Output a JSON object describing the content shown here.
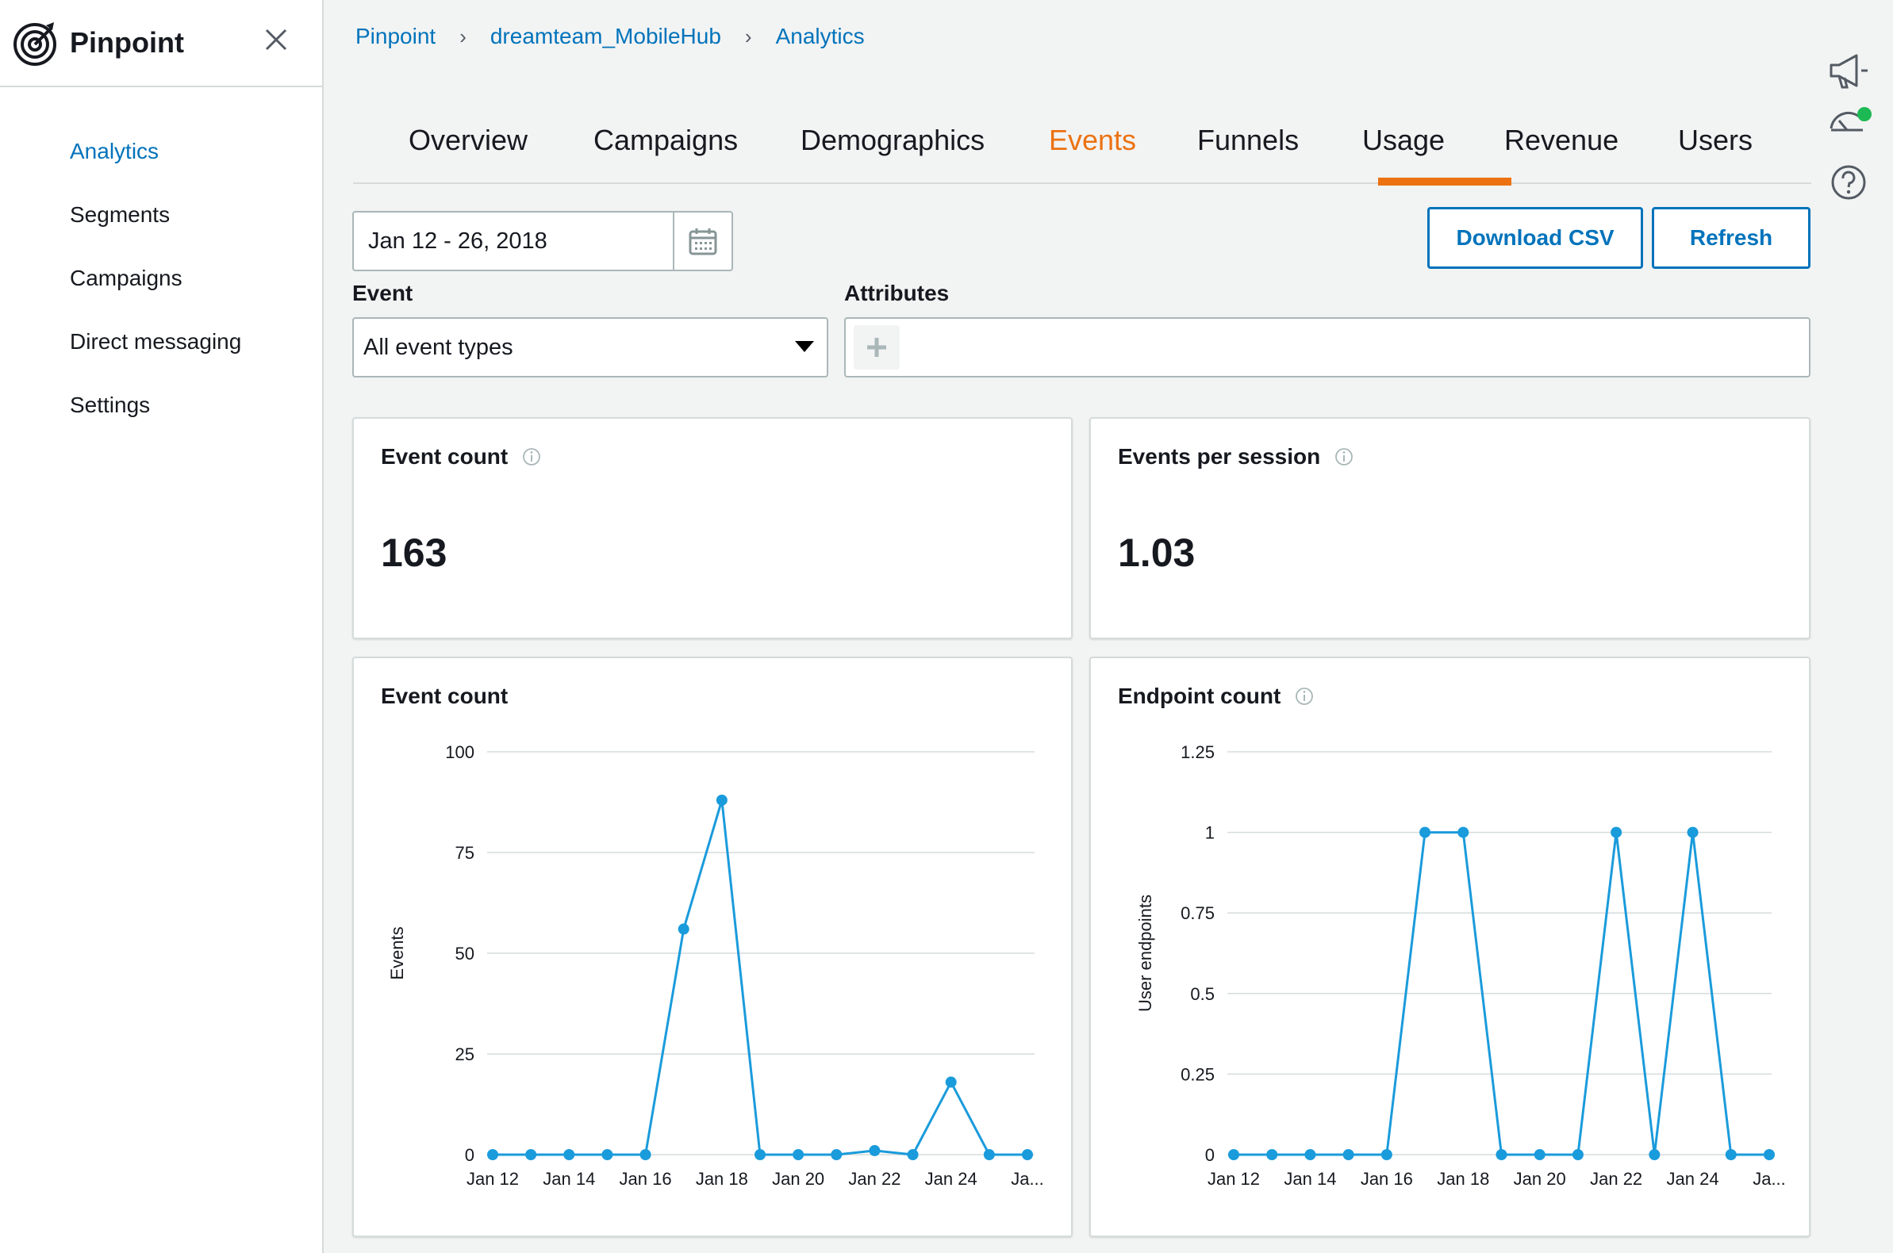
{
  "app": {
    "title": "Pinpoint"
  },
  "sidebar": {
    "items": [
      {
        "label": "Analytics",
        "active": true
      },
      {
        "label": "Segments"
      },
      {
        "label": "Campaigns"
      },
      {
        "label": "Direct messaging"
      },
      {
        "label": "Settings"
      }
    ]
  },
  "breadcrumb": [
    "Pinpoint",
    "dreamteam_MobileHub",
    "Analytics"
  ],
  "tabs": {
    "items": [
      "Overview",
      "Campaigns",
      "Demographics",
      "Events",
      "Funnels",
      "Usage",
      "Revenue",
      "Users"
    ],
    "active": "Events"
  },
  "date_range": {
    "value": "Jan 12 - 26, 2018"
  },
  "buttons": {
    "download_csv": "Download CSV",
    "refresh": "Refresh"
  },
  "filters": {
    "event_label": "Event",
    "event_value": "All event types",
    "attributes_label": "Attributes"
  },
  "metrics": {
    "event_count": {
      "title": "Event count",
      "value": "163"
    },
    "events_per_session": {
      "title": "Events per session",
      "value": "1.03"
    }
  },
  "colors": {
    "accent": "#ec7211",
    "link": "#0073bb",
    "series": "#1a9bdb",
    "status_dot": "#1db954"
  },
  "icons": [
    "target-logo-icon",
    "close-icon",
    "calendar-icon",
    "caret-down-icon",
    "plus-icon",
    "info-icon",
    "megaphone-icon",
    "gauge-status-icon",
    "help-icon"
  ],
  "chart_data": [
    {
      "type": "line",
      "title": "Event count",
      "xlabel": "",
      "ylabel": "Events",
      "ylim": [
        0,
        100
      ],
      "yticks": [
        "0",
        "25",
        "50",
        "75",
        "100"
      ],
      "x": [
        "Jan 12",
        "Jan 13",
        "Jan 14",
        "Jan 15",
        "Jan 16",
        "Jan 17",
        "Jan 18",
        "Jan 19",
        "Jan 20",
        "Jan 21",
        "Jan 22",
        "Jan 23",
        "Jan 24",
        "Jan 25",
        "Jan 26"
      ],
      "xtick_labels": [
        "Jan 12",
        "Jan 14",
        "Jan 16",
        "Jan 18",
        "Jan 20",
        "Jan 22",
        "Jan 24",
        "Ja..."
      ],
      "series": [
        {
          "values": [
            0,
            0,
            0,
            0,
            0,
            56,
            88,
            0,
            0,
            0,
            1,
            0,
            18,
            0,
            0
          ]
        }
      ],
      "grid": true
    },
    {
      "type": "line",
      "title": "Endpoint count",
      "xlabel": "",
      "ylabel": "User endpoints",
      "ylim": [
        0,
        1.25
      ],
      "yticks": [
        "0",
        "0.25",
        "0.5",
        "0.75",
        "1",
        "1.25"
      ],
      "x": [
        "Jan 12",
        "Jan 13",
        "Jan 14",
        "Jan 15",
        "Jan 16",
        "Jan 17",
        "Jan 18",
        "Jan 19",
        "Jan 20",
        "Jan 21",
        "Jan 22",
        "Jan 23",
        "Jan 24",
        "Jan 25",
        "Jan 26"
      ],
      "xtick_labels": [
        "Jan 12",
        "Jan 14",
        "Jan 16",
        "Jan 18",
        "Jan 20",
        "Jan 22",
        "Jan 24",
        "Ja..."
      ],
      "series": [
        {
          "values": [
            0,
            0,
            0,
            0,
            0,
            1,
            1,
            0,
            0,
            0,
            1,
            0,
            1,
            0,
            0
          ]
        }
      ],
      "grid": true
    }
  ]
}
